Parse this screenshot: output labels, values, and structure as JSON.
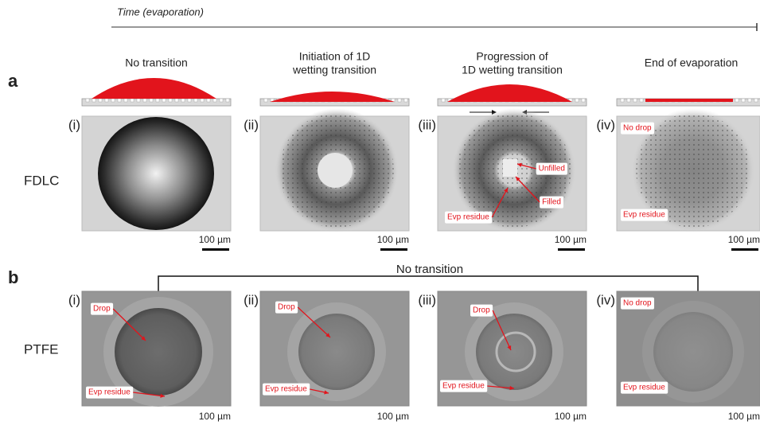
{
  "timeline": {
    "label": "Time (evaporation)"
  },
  "panel_a": {
    "letter": "a",
    "row_label": "FDLC",
    "headers": [
      [
        "No transition"
      ],
      [
        "Initiation of 1D",
        "wetting transition"
      ],
      [
        "Progression of",
        "1D wetting transition"
      ],
      [
        "End of evaporation"
      ]
    ],
    "images": [
      {
        "label": "(i)",
        "scale": "100 µm",
        "annotations": []
      },
      {
        "label": "(ii)",
        "scale": "100 µm",
        "annotations": []
      },
      {
        "label": "(iii)",
        "scale": "100 µm",
        "annotations": [
          "Unfilled",
          "Filled",
          "Evp residue"
        ]
      },
      {
        "label": "(iv)",
        "scale": "100 µm",
        "annotations": [
          "No drop",
          "Evp residue"
        ]
      }
    ]
  },
  "panel_b": {
    "letter": "b",
    "row_label": "PTFE",
    "bracket_label": "No transition",
    "images": [
      {
        "label": "(i)",
        "scale": "100 µm",
        "annotations": [
          "Drop",
          "Evp residue"
        ]
      },
      {
        "label": "(ii)",
        "scale": "100 µm",
        "annotations": [
          "Drop",
          "Evp residue"
        ]
      },
      {
        "label": "(iii)",
        "scale": "100 µm",
        "annotations": [
          "Drop",
          "Evp residue"
        ]
      },
      {
        "label": "(iv)",
        "scale": "100 µm",
        "annotations": [
          "No drop",
          "Evp residue"
        ]
      }
    ]
  }
}
